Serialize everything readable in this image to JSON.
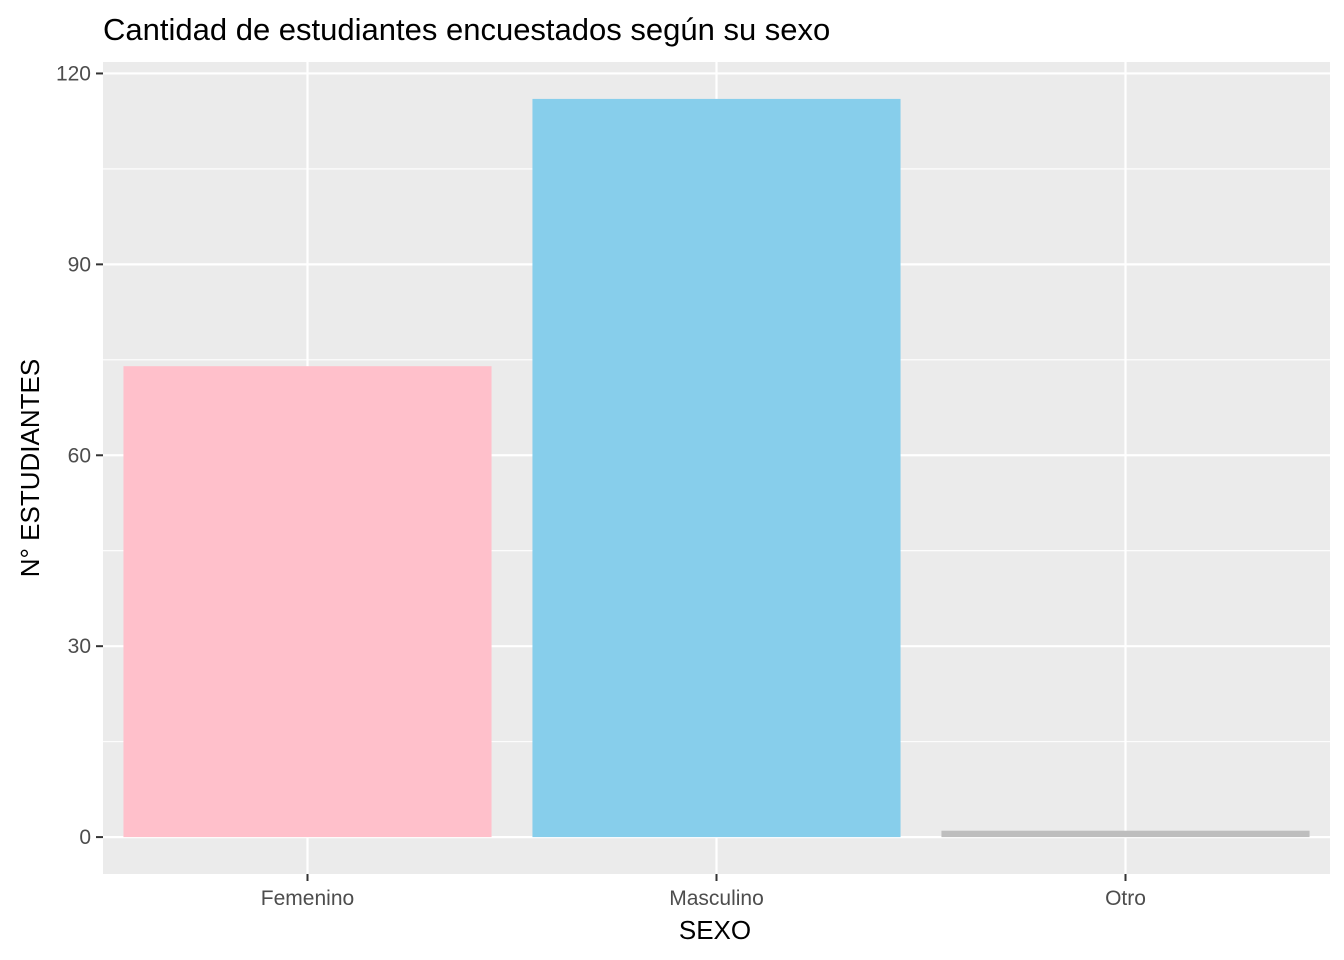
{
  "chart_data": {
    "type": "bar",
    "title": "Cantidad de estudiantes encuestados según su sexo",
    "xlabel": "SEXO",
    "ylabel": "N° ESTUDIANTES",
    "categories": [
      "Femenino",
      "Masculino",
      "Otro"
    ],
    "values": [
      74,
      116,
      1
    ],
    "colors": [
      "#FFC0CB",
      "#87CEEB",
      "#BEBEBE"
    ],
    "ylim": [
      -5.8,
      121.8
    ],
    "y_ticks": [
      0,
      30,
      60,
      90,
      120
    ],
    "y_tick_labels": [
      "0",
      "30",
      "60",
      "90",
      "120"
    ],
    "grid": true,
    "legend": "none",
    "panel_background": "#EBEBEB",
    "grid_color": "#FFFFFF"
  }
}
